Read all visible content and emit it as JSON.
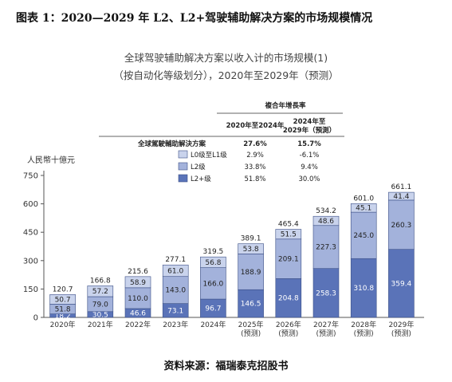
{
  "caption": "图表 1：2020—2029 年 L2、L2+驾驶辅助解决方案的市场规模情况",
  "source": "资料来源：福瑞泰克招股书",
  "colors": {
    "l0_l1": "#c9d3ec",
    "l2": "#a3b2db",
    "l2plus": "#5a73b8",
    "axis": "#555555"
  },
  "cagr_table": {
    "header": "複合年增長率",
    "col1": "2020年至2024年",
    "col2_line1": "2024年至",
    "col2_line2": "2029年（預測）",
    "rows": [
      {
        "label": "全球駕駛輔助解決方案",
        "v1": "27.6%",
        "v2": "15.7%",
        "bold": true
      },
      {
        "label": "L0级至L1级",
        "v1": "2.9%",
        "v2": "-6.1%",
        "series": 0
      },
      {
        "label": "L2级",
        "v1": "33.8%",
        "v2": "9.4%",
        "series": 1
      },
      {
        "label": "L2+级",
        "v1": "51.8%",
        "v2": "30.0%",
        "series": 2
      }
    ]
  },
  "chart_data": {
    "type": "bar",
    "stacked": true,
    "title": "全球驾驶辅助解决方案以收入计的市场规模(1)",
    "subtitle": "（按自动化等级划分），2020年至2029年（预测）",
    "ylabel": "人民幣十億元",
    "ylim": [
      0,
      750
    ],
    "yticks": [
      0,
      150,
      300,
      450,
      600,
      750
    ],
    "categories": [
      [
        "2020年"
      ],
      [
        "2021年"
      ],
      [
        "2022年"
      ],
      [
        "2023年"
      ],
      [
        "2024年"
      ],
      [
        "2025年",
        "(预测)"
      ],
      [
        "2026年",
        "(预测)"
      ],
      [
        "2027年",
        "(预测)"
      ],
      [
        "2028年",
        "(预测)"
      ],
      [
        "2029年",
        "(预测)"
      ]
    ],
    "series": [
      {
        "name": "L2+级",
        "values": [
          18.2,
          30.5,
          46.6,
          73.1,
          96.7,
          146.5,
          204.8,
          258.3,
          310.8,
          359.4
        ]
      },
      {
        "name": "L2级",
        "values": [
          51.8,
          79.0,
          110.0,
          143.0,
          166.0,
          188.9,
          209.1,
          227.3,
          245.0,
          260.3
        ]
      },
      {
        "name": "L0级至L1级",
        "values": [
          50.7,
          57.2,
          58.9,
          61.0,
          56.8,
          53.8,
          51.5,
          48.6,
          45.1,
          41.4
        ]
      }
    ],
    "totals": [
      "120.7",
      "166.8",
      "215.6",
      "277.1",
      "319.5",
      "389.1",
      "465.4",
      "534.2",
      "601.0",
      "661.1"
    ]
  }
}
